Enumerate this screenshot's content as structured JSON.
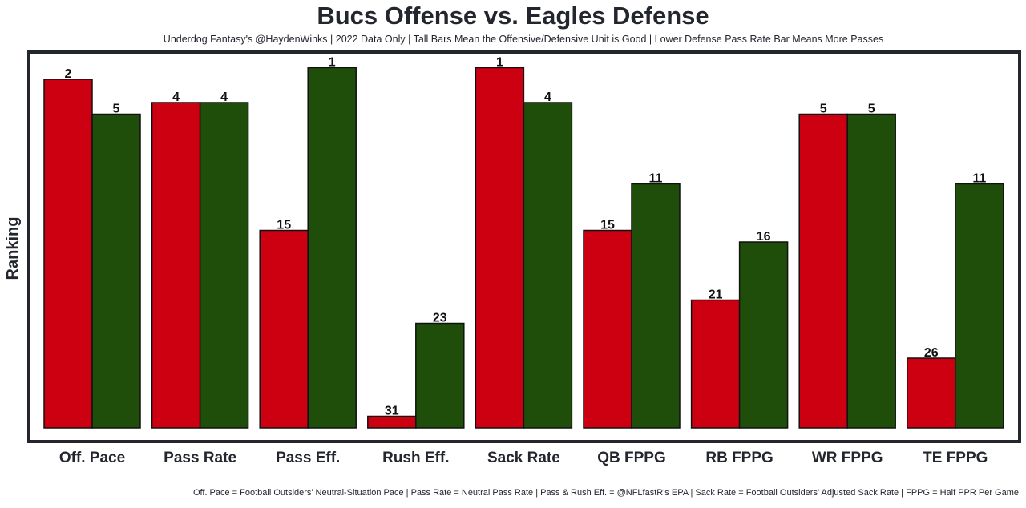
{
  "chart_data": {
    "type": "bar",
    "title": "Bucs Offense vs. Eagles Defense",
    "subtitle": "Underdog Fantasy's @HaydenWinks | 2022 Data Only | Tall Bars Mean the Offensive/Defensive Unit is Good | Lower Defense Pass Rate Bar Means More Passes",
    "footnote": "Off. Pace = Football Outsiders' Neutral-Situation Pace | Pass Rate = Neutral Pass Rate | Pass & Rush Eff. = @NFLfastR's EPA | Sack Rate = Football Outsiders' Adjusted Sack Rate | FPPG = Half PPR Per Game",
    "xlabel": "",
    "ylabel": "Ranking",
    "categories": [
      "Off. Pace",
      "Pass Rate",
      "Pass Eff.",
      "Rush Eff.",
      "Sack Rate",
      "QB FPPG",
      "RB FPPG",
      "WR FPPG",
      "TE FPPG"
    ],
    "series": [
      {
        "name": "Bucs Offense",
        "color": "#cc0010",
        "values": [
          2,
          4,
          15,
          31,
          1,
          15,
          21,
          5,
          26
        ]
      },
      {
        "name": "Eagles Defense",
        "color": "#1f4d0a",
        "values": [
          5,
          4,
          1,
          23,
          4,
          11,
          16,
          5,
          11
        ]
      }
    ],
    "ylim": [
      32,
      1
    ],
    "grid": false
  }
}
